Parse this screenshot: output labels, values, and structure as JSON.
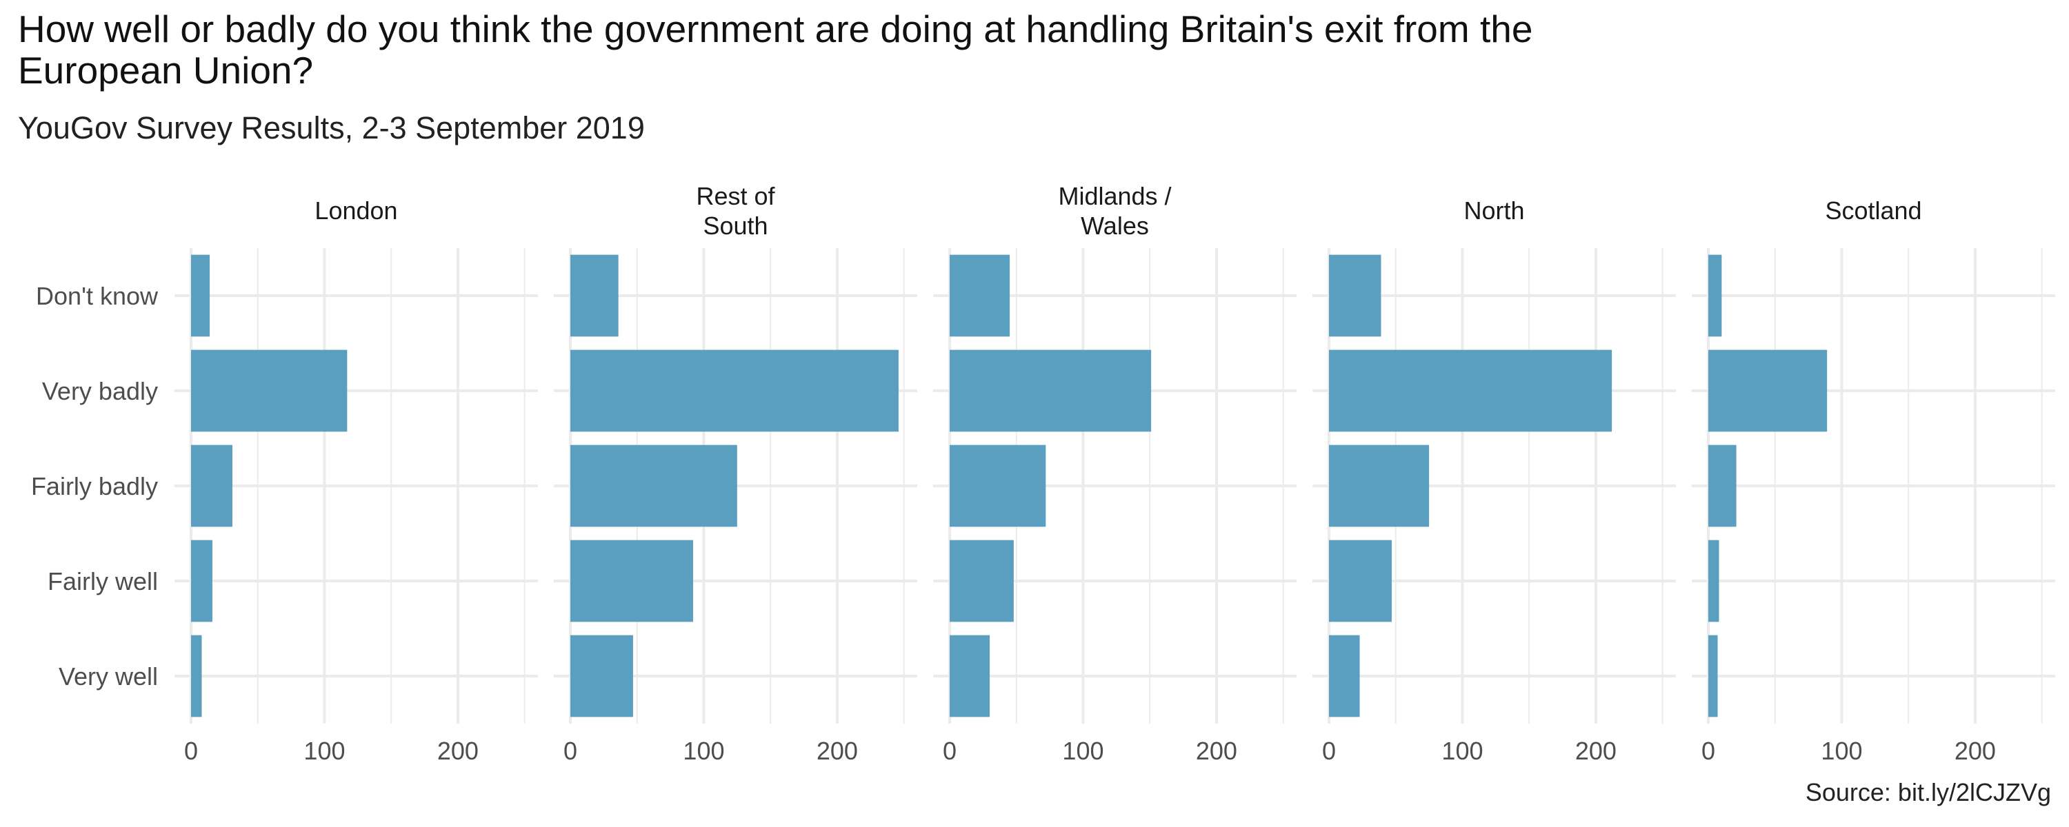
{
  "chart_data": {
    "type": "bar",
    "orientation": "horizontal",
    "title": "How well or badly do you think the government are doing at handling Britain's exit from the European Union?",
    "subtitle": "YouGov Survey Results, 2-3 September 2019",
    "caption": "Source: bit.ly/2lCJZVg",
    "categories": [
      "Don't know",
      "Very badly",
      "Fairly badly",
      "Fairly well",
      "Very well"
    ],
    "xlim": [
      0,
      250
    ],
    "xticks": [
      0,
      100,
      200
    ],
    "grid": true,
    "bar_color": "#5a9ec0",
    "panels": [
      {
        "name": [
          "London"
        ],
        "values": [
          14,
          117,
          31,
          16,
          8
        ]
      },
      {
        "name": [
          "Rest of",
          "South"
        ],
        "values": [
          36,
          246,
          125,
          92,
          47
        ]
      },
      {
        "name": [
          "Midlands /",
          "Wales"
        ],
        "values": [
          45,
          151,
          72,
          48,
          30
        ]
      },
      {
        "name": [
          "North"
        ],
        "values": [
          39,
          212,
          75,
          47,
          23
        ]
      },
      {
        "name": [
          "Scotland"
        ],
        "values": [
          10,
          89,
          21,
          8,
          7
        ]
      }
    ]
  }
}
